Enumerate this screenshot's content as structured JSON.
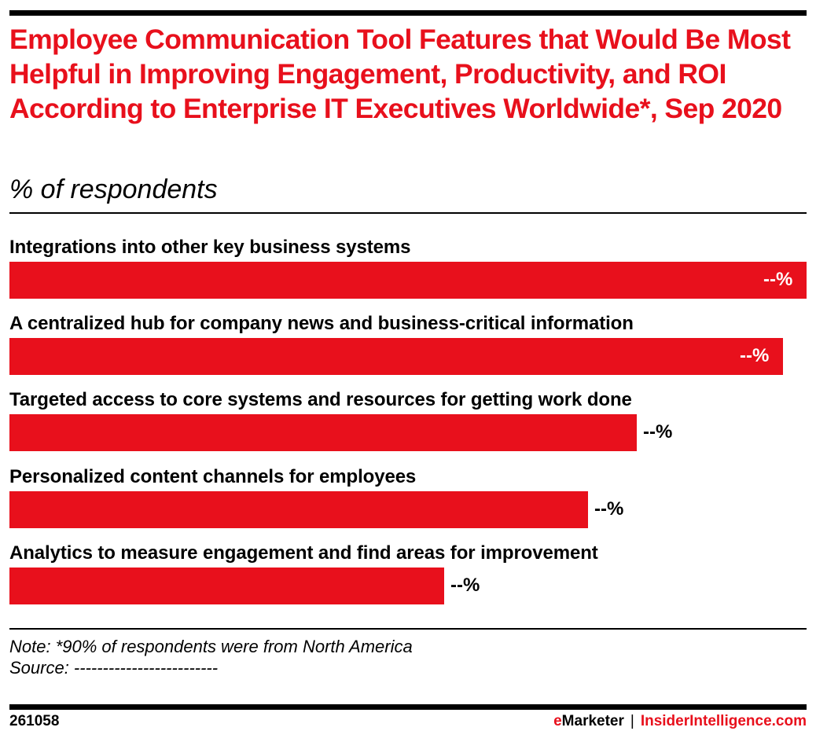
{
  "header": {
    "title": "Employee Communication Tool Features that Would Be Most Helpful in Improving Engagement, Productivity, and ROI According to Enterprise IT Executives Worldwide*, Sep 2020",
    "subtitle": "% of respondents"
  },
  "colors": {
    "bar": "#e8101c",
    "title": "#e8101c",
    "text": "#000000"
  },
  "chart_data": {
    "type": "bar",
    "orientation": "horizontal",
    "title": "Employee Communication Tool Features that Would Be Most Helpful in Improving Engagement, Productivity, and ROI According to Enterprise IT Executives Worldwide*, Sep 2020",
    "subtitle": "% of respondents",
    "xlabel": "",
    "ylabel": "",
    "categories": [
      "Integrations into other key business systems",
      "A centralized hub for company news and business-critical information",
      "Targeted access to core systems and resources for getting work done",
      "Personalized content channels for employees",
      "Analytics to measure engagement and find areas for improvement"
    ],
    "value_labels": [
      "--%",
      "--%",
      "--%",
      "--%",
      "--%"
    ],
    "relative_lengths": [
      100,
      97,
      79,
      73,
      54
    ],
    "grid": false,
    "legend": null
  },
  "bars": [
    {
      "label": "Integrations into other key business systems",
      "value_label": "--%",
      "width_pct": 100,
      "label_pos": "inside"
    },
    {
      "label": "A centralized hub for company news and business-critical information",
      "value_label": "--%",
      "width_pct": 97,
      "label_pos": "inside"
    },
    {
      "label": "Targeted access to core systems and resources for getting work done",
      "value_label": "--%",
      "width_pct": 78.7,
      "label_pos": "outside"
    },
    {
      "label": "Personalized content channels for employees",
      "value_label": "--%",
      "width_pct": 72.6,
      "label_pos": "outside"
    },
    {
      "label": "Analytics to measure engagement and find areas for improvement",
      "value_label": "--%",
      "width_pct": 54.5,
      "label_pos": "outside"
    }
  ],
  "footnote": {
    "note": "Note: *90% of respondents were from North America",
    "source": "Source: -------------------------"
  },
  "footer": {
    "chart_id": "261058",
    "brand_e": "e",
    "brand_rest": "Marketer",
    "separator": "|",
    "site": "InsiderIntelligence.com"
  }
}
